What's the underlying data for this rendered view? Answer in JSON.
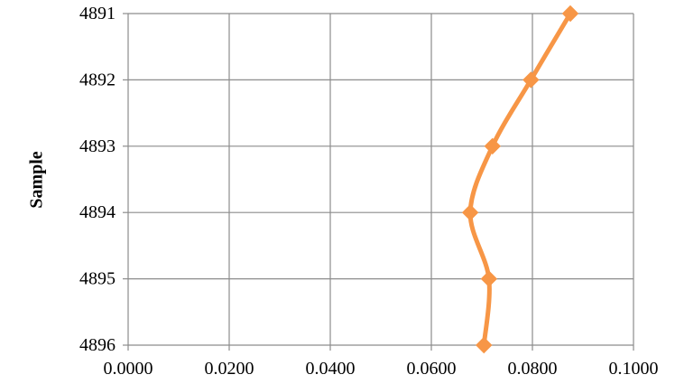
{
  "chart_data": {
    "type": "line",
    "orientation": "horizontal-values",
    "title": "",
    "xlabel": "",
    "ylabel": "Sample",
    "categories": [
      "4891",
      "4892",
      "4893",
      "4894",
      "4895",
      "4896"
    ],
    "xlim": [
      0,
      0.1
    ],
    "x_ticks": [
      "0.0000",
      "0.0200",
      "0.0400",
      "0.0600",
      "0.0800",
      "0.1000"
    ],
    "x_tick_values": [
      0,
      0.02,
      0.04,
      0.06,
      0.08,
      0.1
    ],
    "grid": true,
    "legend": "none",
    "series": [
      {
        "values": [
          0.0875,
          0.0797,
          0.0721,
          0.0677,
          0.0714,
          0.0704
        ],
        "color": "#F79646",
        "marker": "diamond",
        "smooth": true
      }
    ]
  }
}
